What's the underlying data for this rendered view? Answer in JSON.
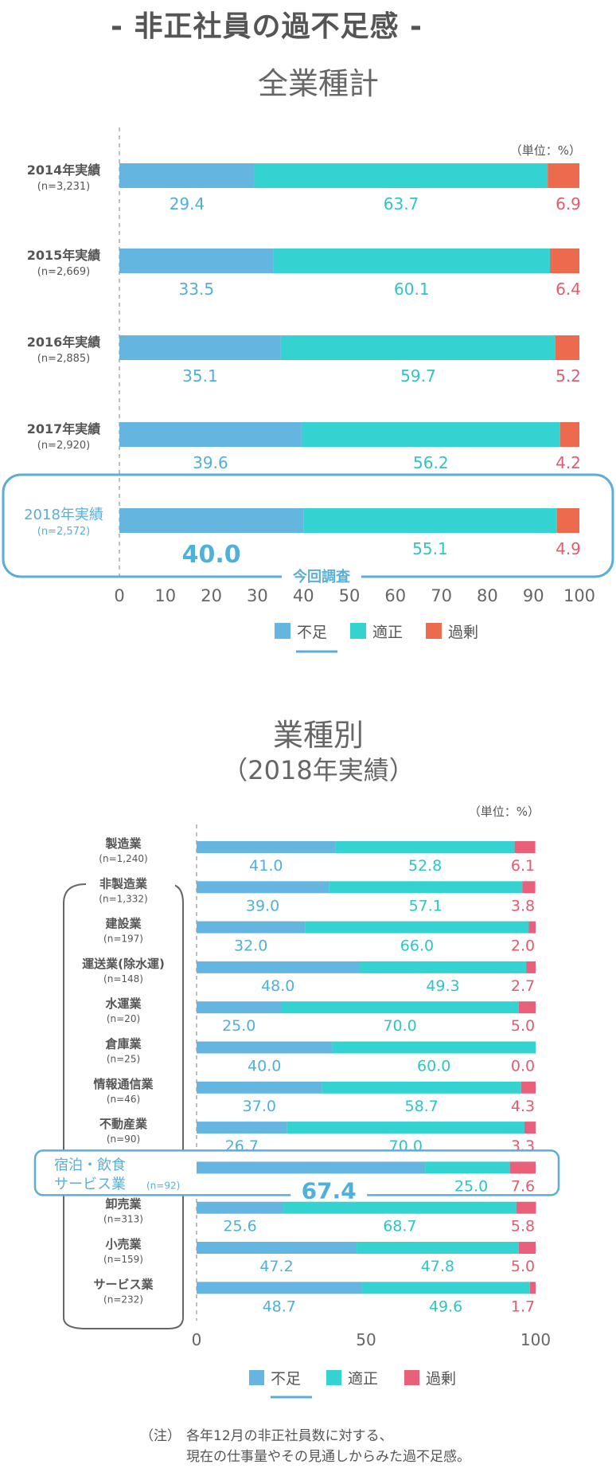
{
  "page_title": "- 非正社員の過不足感 -",
  "note": {
    "prefix": "（注）",
    "line1": "各年12月の非正社員数に対する、",
    "line2": "現在の仕事量やその見通しからみた過不足感。"
  },
  "colors": {
    "shortage": "#64b5e0",
    "adequate": "#34d2d0",
    "surplus_top": "#ec6b4e",
    "surplus_bottom": "#e8607a",
    "shortage_text": "#4fb0dc",
    "adequate_text": "#2cc6c4",
    "surplus_text": "#e45a6e",
    "highlight": "#5aaed8",
    "label_gray": "#555555"
  },
  "chart_data": [
    {
      "type": "bar",
      "orientation": "horizontal",
      "stacked": true,
      "title": "全業種計",
      "unit": "（単位：%）",
      "xlim": [
        0,
        100
      ],
      "x_ticks": [
        "0",
        "10",
        "20",
        "30",
        "40",
        "50",
        "60",
        "70",
        "80",
        "90",
        "100"
      ],
      "legend": [
        "不足",
        "適正",
        "過剰"
      ],
      "legend_position": "bottom",
      "highlight_label": "今回調査",
      "categories": [
        {
          "label": "2014年実績",
          "n": "(n=3,231)",
          "highlight": false
        },
        {
          "label": "2015年実績",
          "n": "(n=2,669)",
          "highlight": false
        },
        {
          "label": "2016年実績",
          "n": "(n=2,885)",
          "highlight": false
        },
        {
          "label": "2017年実績",
          "n": "(n=2,920)",
          "highlight": false
        },
        {
          "label": "2018年実績",
          "n": "(n=2,572)",
          "highlight": true
        }
      ],
      "series": [
        {
          "name": "不足",
          "values": [
            29.4,
            33.5,
            35.1,
            39.6,
            40.0
          ],
          "labels": [
            "29.4",
            "33.5",
            "35.1",
            "39.6",
            "40.0"
          ]
        },
        {
          "name": "適正",
          "values": [
            63.7,
            60.1,
            59.7,
            56.2,
            55.1
          ],
          "labels": [
            "63.7",
            "60.1",
            "59.7",
            "56.2",
            "55.1"
          ]
        },
        {
          "name": "過剰",
          "values": [
            6.9,
            6.4,
            5.2,
            4.2,
            4.9
          ],
          "labels": [
            "6.9",
            "6.4",
            "5.2",
            "4.2",
            "4.9"
          ]
        }
      ]
    },
    {
      "type": "bar",
      "orientation": "horizontal",
      "stacked": true,
      "title": "業種別",
      "subtitle": "（2018年実績）",
      "unit": "（単位：%）",
      "xlim": [
        0,
        100
      ],
      "x_ticks": [
        "0",
        "50",
        "100"
      ],
      "legend": [
        "不足",
        "適正",
        "過剰"
      ],
      "legend_position": "bottom",
      "categories": [
        {
          "label": "製造業",
          "n": "(n=1,240)",
          "highlight": false
        },
        {
          "label": "非製造業",
          "n": "(n=1,332)",
          "highlight": false
        },
        {
          "label": "建設業",
          "n": "(n=197)",
          "highlight": false
        },
        {
          "label": "運送業(除水運)",
          "n": "(n=148)",
          "highlight": false
        },
        {
          "label": "水運業",
          "n": "(n=20)",
          "highlight": false
        },
        {
          "label": "倉庫業",
          "n": "(n=25)",
          "highlight": false
        },
        {
          "label": "情報通信業",
          "n": "(n=46)",
          "highlight": false
        },
        {
          "label": "不動産業",
          "n": "(n=90)",
          "highlight": false
        },
        {
          "label": "宿泊・飲食",
          "label2": "サービス業",
          "n": "(n=92)",
          "highlight": true
        },
        {
          "label": "卸売業",
          "n": "(n=313)",
          "highlight": false
        },
        {
          "label": "小売業",
          "n": "(n=159)",
          "highlight": false
        },
        {
          "label": "サービス業",
          "n": "(n=232)",
          "highlight": false
        }
      ],
      "series": [
        {
          "name": "不足",
          "values": [
            41.0,
            39.0,
            32.0,
            48.0,
            25.0,
            40.0,
            37.0,
            26.7,
            67.4,
            25.6,
            47.2,
            48.7
          ],
          "labels": [
            "41.0",
            "39.0",
            "32.0",
            "48.0",
            "25.0",
            "40.0",
            "37.0",
            "26.7",
            "67.4",
            "25.6",
            "47.2",
            "48.7"
          ]
        },
        {
          "name": "適正",
          "values": [
            52.8,
            57.1,
            66.0,
            49.3,
            70.0,
            60.0,
            58.7,
            70.0,
            25.0,
            68.7,
            47.8,
            49.6
          ],
          "labels": [
            "52.8",
            "57.1",
            "66.0",
            "49.3",
            "70.0",
            "60.0",
            "58.7",
            "70.0",
            "25.0",
            "68.7",
            "47.8",
            "49.6"
          ]
        },
        {
          "name": "過剰",
          "values": [
            6.1,
            3.8,
            2.0,
            2.7,
            5.0,
            0.0,
            4.3,
            3.3,
            7.6,
            5.8,
            5.0,
            1.7
          ],
          "labels": [
            "6.1",
            "3.8",
            "2.0",
            "2.7",
            "5.0",
            "0.0",
            "4.3",
            "3.3",
            "7.6",
            "5.8",
            "5.0",
            "1.7"
          ]
        }
      ]
    }
  ]
}
